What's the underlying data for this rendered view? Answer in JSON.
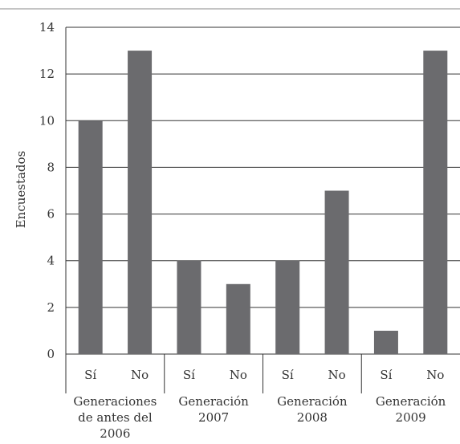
{
  "chart_data": {
    "type": "bar",
    "title": "",
    "xlabel": "",
    "ylabel": "Encuestados",
    "ylim": [
      0,
      14
    ],
    "yticks": [
      0,
      2,
      4,
      6,
      8,
      10,
      12,
      14
    ],
    "grid": true,
    "legend": "none",
    "bar_color": "#6b6b6e",
    "groups": [
      {
        "label_lines": [
          "Generaciones",
          "de antes del",
          "2006"
        ],
        "categories": [
          "Sí",
          "No"
        ],
        "values": [
          10,
          13
        ]
      },
      {
        "label_lines": [
          "Generación",
          "2007"
        ],
        "categories": [
          "Sí",
          "No"
        ],
        "values": [
          4,
          3
        ]
      },
      {
        "label_lines": [
          "Generación",
          "2008"
        ],
        "categories": [
          "Sí",
          "No"
        ],
        "values": [
          4,
          7
        ]
      },
      {
        "label_lines": [
          "Generación",
          "2009"
        ],
        "categories": [
          "Sí",
          "No"
        ],
        "values": [
          1,
          13
        ]
      }
    ]
  }
}
